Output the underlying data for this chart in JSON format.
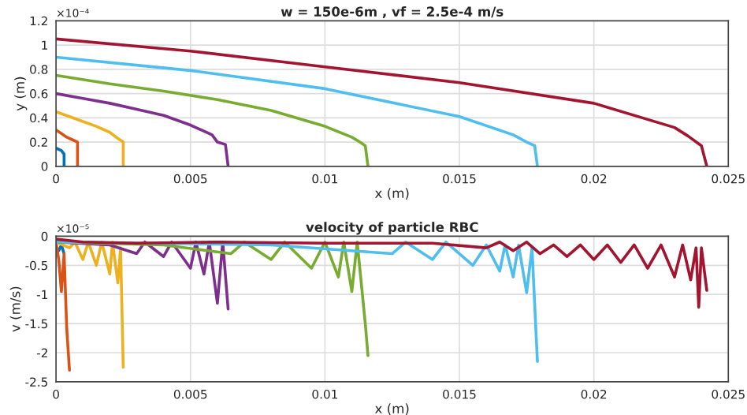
{
  "chart_data": [
    {
      "type": "line",
      "title": "w = 150e-6m , vf = 2.5e-4 m/s",
      "xlabel": "x (m)",
      "ylabel": "y (m)",
      "annotations": [
        "×10⁻⁴"
      ],
      "xlim": [
        0,
        0.025
      ],
      "xticks": [
        0,
        0.005,
        0.01,
        0.015,
        0.02,
        0.025
      ],
      "ylim": [
        0,
        1.2
      ],
      "yticks": [
        0,
        0.2,
        0.4,
        0.6,
        0.8,
        1,
        1.2
      ],
      "grid": true,
      "series": [
        {
          "color": "#0072bd",
          "x": [
            0,
            0.0002,
            0.0003,
            0.0003
          ],
          "values": [
            0.15,
            0.13,
            0.1,
            0
          ]
        },
        {
          "color": "#d95319",
          "x": [
            0,
            0.0002,
            0.0004,
            0.0006,
            0.0008,
            0.0008
          ],
          "values": [
            0.3,
            0.27,
            0.24,
            0.22,
            0.2,
            0
          ]
        },
        {
          "color": "#edb120",
          "x": [
            0,
            0.0005,
            0.001,
            0.0015,
            0.002,
            0.0023,
            0.0025,
            0.0025
          ],
          "values": [
            0.45,
            0.41,
            0.37,
            0.33,
            0.28,
            0.23,
            0.2,
            0
          ]
        },
        {
          "color": "#7e2f8e",
          "x": [
            0,
            0.001,
            0.002,
            0.003,
            0.004,
            0.005,
            0.0058,
            0.006,
            0.0063,
            0.0064
          ],
          "values": [
            0.6,
            0.56,
            0.52,
            0.47,
            0.42,
            0.34,
            0.26,
            0.2,
            0.18,
            0
          ]
        },
        {
          "color": "#77ac30",
          "x": [
            0,
            0.002,
            0.004,
            0.006,
            0.008,
            0.01,
            0.011,
            0.0113,
            0.0115,
            0.0116
          ],
          "values": [
            0.75,
            0.68,
            0.62,
            0.55,
            0.46,
            0.33,
            0.24,
            0.2,
            0.17,
            0
          ]
        },
        {
          "color": "#4dbeee",
          "x": [
            0,
            0.005,
            0.01,
            0.015,
            0.017,
            0.0175,
            0.0178,
            0.0179
          ],
          "values": [
            0.9,
            0.79,
            0.64,
            0.41,
            0.26,
            0.2,
            0.17,
            0
          ]
        },
        {
          "color": "#a2142f",
          "x": [
            0,
            0.005,
            0.01,
            0.015,
            0.02,
            0.023,
            0.0235,
            0.024,
            0.0242
          ],
          "values": [
            1.05,
            0.95,
            0.82,
            0.69,
            0.52,
            0.32,
            0.25,
            0.17,
            0
          ]
        }
      ]
    },
    {
      "type": "line",
      "title": "velocity of particle RBC",
      "xlabel": "x (m)",
      "ylabel": "v (m/s)",
      "annotations": [
        "×10⁻⁵"
      ],
      "xlim": [
        0,
        0.025
      ],
      "xticks": [
        0,
        0.005,
        0.01,
        0.015,
        0.02,
        0.025
      ],
      "ylim": [
        -2.5,
        0
      ],
      "yticks": [
        -2.5,
        -2,
        -1.5,
        -1,
        -0.5,
        0
      ],
      "grid": true,
      "series": [
        {
          "color": "#0072bd",
          "x": [
            0.0001,
            0.0002,
            0.0003
          ],
          "values": [
            -0.25,
            -0.15,
            -0.3
          ]
        },
        {
          "color": "#d95319",
          "x": [
            0,
            0.0001,
            0.0002,
            0.0003,
            0.0004,
            0.0005
          ],
          "values": [
            -0.1,
            -0.4,
            -0.95,
            -0.3,
            -1.6,
            -2.3
          ]
        },
        {
          "color": "#edb120",
          "x": [
            0,
            0.0005,
            0.0007,
            0.001,
            0.0012,
            0.0015,
            0.0017,
            0.002,
            0.0021,
            0.0023,
            0.0024,
            0.0025
          ],
          "values": [
            -0.1,
            -0.2,
            -0.1,
            -0.4,
            -0.1,
            -0.5,
            -0.1,
            -0.65,
            -0.1,
            -0.8,
            -0.2,
            -2.25
          ]
        },
        {
          "color": "#7e2f8e",
          "x": [
            0,
            0.002,
            0.003,
            0.0033,
            0.004,
            0.0043,
            0.005,
            0.0052,
            0.0055,
            0.0057,
            0.006,
            0.0062,
            0.0064
          ],
          "values": [
            -0.1,
            -0.15,
            -0.3,
            -0.1,
            -0.35,
            -0.1,
            -0.55,
            -0.1,
            -0.65,
            -0.1,
            -1.15,
            -0.1,
            -1.25
          ]
        },
        {
          "color": "#77ac30",
          "x": [
            0,
            0.004,
            0.0065,
            0.007,
            0.008,
            0.0085,
            0.0095,
            0.01,
            0.0105,
            0.0107,
            0.011,
            0.0112,
            0.0115,
            0.0116
          ],
          "values": [
            -0.1,
            -0.15,
            -0.3,
            -0.1,
            -0.4,
            -0.1,
            -0.55,
            -0.1,
            -0.7,
            -0.1,
            -0.95,
            -0.1,
            -1.5,
            -2.05
          ]
        },
        {
          "color": "#4dbeee",
          "x": [
            0,
            0.008,
            0.0125,
            0.013,
            0.014,
            0.0145,
            0.0155,
            0.016,
            0.0165,
            0.0167,
            0.017,
            0.0172,
            0.0175,
            0.0177,
            0.0179
          ],
          "values": [
            -0.1,
            -0.15,
            -0.3,
            -0.1,
            -0.4,
            -0.1,
            -0.5,
            -0.15,
            -0.6,
            -0.15,
            -0.7,
            -0.15,
            -0.97,
            -0.2,
            -2.15
          ]
        },
        {
          "color": "#a2142f",
          "x": [
            0,
            0.001,
            0.003,
            0.006,
            0.01,
            0.014,
            0.016,
            0.0165,
            0.017,
            0.0175,
            0.018,
            0.0185,
            0.019,
            0.0195,
            0.02,
            0.0205,
            0.021,
            0.0215,
            0.022,
            0.0225,
            0.023,
            0.0233,
            0.0236,
            0.0238,
            0.0239,
            0.024,
            0.0242
          ],
          "values": [
            -0.05,
            -0.1,
            -0.12,
            -0.1,
            -0.12,
            -0.12,
            -0.2,
            -0.1,
            -0.25,
            -0.1,
            -0.3,
            -0.15,
            -0.35,
            -0.15,
            -0.4,
            -0.15,
            -0.45,
            -0.15,
            -0.55,
            -0.15,
            -0.7,
            -0.15,
            -0.75,
            -0.2,
            -1.22,
            -0.2,
            -0.93
          ]
        }
      ]
    }
  ]
}
